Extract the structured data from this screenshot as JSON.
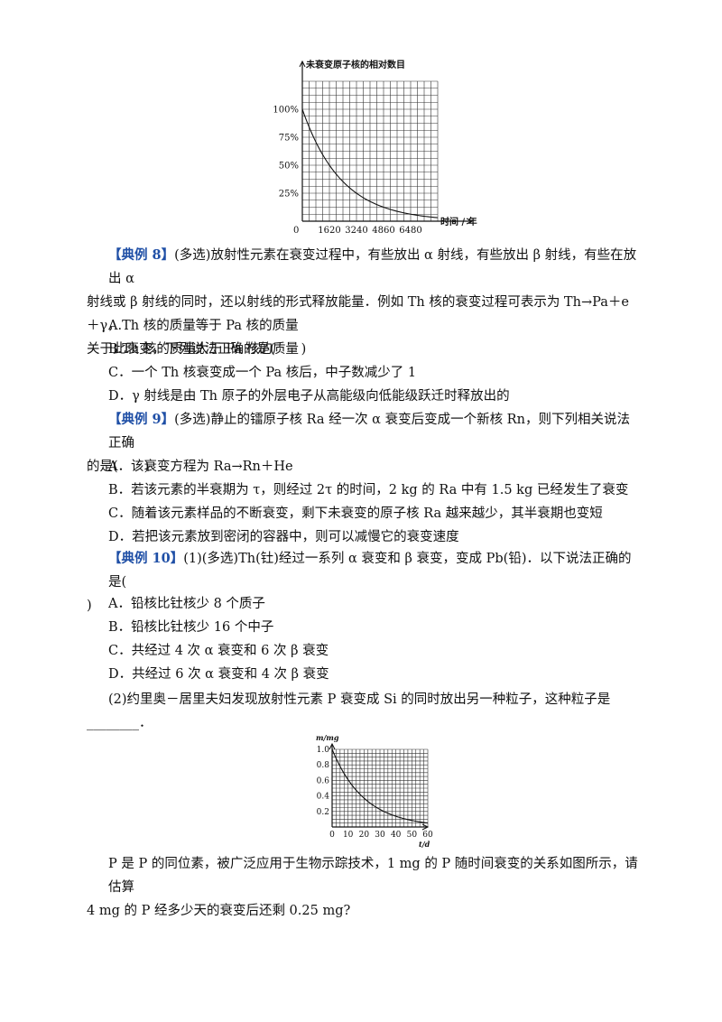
{
  "chart1": {
    "ylabel": "未衰变原子核的相对数目",
    "xlabel": "时间 / 年",
    "origin_label": "0",
    "y_ticks": [
      "100%",
      "75%",
      "50%",
      "25%"
    ],
    "x_ticks": [
      "1620",
      "3240",
      "4860",
      "6480"
    ],
    "colors": {
      "grid": "#333333",
      "curve": "#111111"
    }
  },
  "chart2": {
    "ylabel": "m/mg",
    "xlabel": "t/d",
    "y_ticks": [
      "1.0",
      "0.8",
      "0.6",
      "0.4",
      "0.2"
    ],
    "x_ticks": [
      "0",
      "10",
      "20",
      "30",
      "40",
      "50",
      "60"
    ]
  },
  "chart_data": [
    {
      "type": "line",
      "ylabel": "未衰变原子核的相对数目",
      "xlabel": "时间 / 年",
      "x": [
        0,
        1620,
        3240,
        4860,
        6480,
        8100
      ],
      "y": [
        100,
        50,
        25,
        12.5,
        6.25,
        3.125
      ],
      "xlim": [
        0,
        8100
      ],
      "ylim": [
        0,
        125
      ],
      "grid": true
    },
    {
      "type": "line",
      "ylabel": "m/mg",
      "xlabel": "t/d",
      "x": [
        0,
        10,
        14,
        20,
        28,
        30,
        40,
        42,
        50,
        56,
        60
      ],
      "y": [
        1.0,
        0.61,
        0.5,
        0.37,
        0.25,
        0.23,
        0.14,
        0.125,
        0.085,
        0.0625,
        0.05
      ],
      "xlim": [
        0,
        60
      ],
      "ylim": [
        0,
        1.0
      ],
      "grid": true
    }
  ],
  "ex8": {
    "tag": "【典例 8】",
    "line1": "(多选)放射性元素在衰变过程中，有些放出 α 射线，有些放出 β 射线，有些在放出 α",
    "line2": "射线或 β 射线的同时，还以射线的形式释放能量．例如 Th 核的衰变过程可表示为 Th→Pa＋e＋γ，",
    "line3": "关于此衰变，下列说法正确的是(　　)",
    "options": [
      "A.Th 核的质量等于 Pa 核的质量",
      "B.Th 核的质量大于 Pa 核的质量",
      "C．一个 Th 核衰变成一个 Pa 核后，中子数减少了 1",
      "D．γ 射线是由 Th 原子的外层电子从高能级向低能级跃迁时释放出的"
    ]
  },
  "ex9": {
    "tag": "【典例 9】",
    "line1": "(多选)静止的镭原子核 Ra 经一次 α 衰变后变成一个新核 Rn，则下列相关说法正确",
    "line2": "的是(　　)",
    "options": [
      "A．该衰变方程为 Ra→Rn＋He",
      "B．若该元素的半衰期为 τ，则经过 2τ 的时间，2 kg 的 Ra 中有 1.5 kg 已经发生了衰变",
      "C．随着该元素样品的不断衰变，剩下未衰变的原子核 Ra 越来越少，其半衰期也变短",
      "D．若把该元素放到密闭的容器中，则可以减慢它的衰变速度"
    ]
  },
  "ex10": {
    "tag": "【典例 10】",
    "line1": "(1)(多选)Th(钍)经过一系列 α 衰变和 β 衰变，变成 Pb(铅)．以下说法正确的是(",
    "line2": ")",
    "options": [
      "A．铅核比钍核少 8 个质子",
      "B．铅核比钍核少 16 个中子",
      "C．共经过 4 次 α 衰变和 6 次 β 衰变",
      "D．共经过 6 次 α 衰变和 4 次 β 衰变"
    ],
    "part2_line1": "(2)约里奥－居里夫妇发现放射性元素 P 衰变成 Si 的同时放出另一种粒子，这种粒子是",
    "part2_line2": "________．",
    "part3_line1": "P 是 P 的同位素，被广泛应用于生物示踪技术，1 mg 的 P 随时间衰变的关系如图所示，请估算",
    "part3_line2": "4 mg 的 P 经多少天的衰变后还剩 0.25 mg?"
  }
}
